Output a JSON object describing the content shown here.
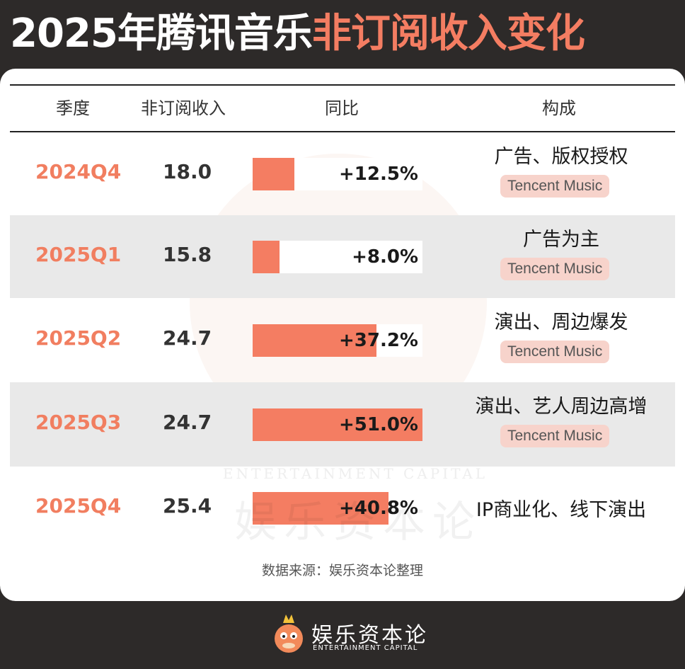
{
  "title": {
    "year": "2025",
    "main": "年腾讯音乐",
    "highlight": "非订阅收入变化"
  },
  "colors": {
    "accent": "#f47d62",
    "background": "#2d2a29",
    "badge": "#f7d3cb"
  },
  "table": {
    "headers": [
      "季度",
      "非订阅收入",
      "同比",
      "构成"
    ],
    "rows": [
      {
        "quarter": "2024Q4",
        "revenue": "18.0",
        "yoy_label": "+12.5%",
        "composition": "广告、版权授权",
        "badge": "Tencent Music"
      },
      {
        "quarter": "2025Q1",
        "revenue": "15.8",
        "yoy_label": "+8.0%",
        "composition": "广告为主",
        "badge": "Tencent Music"
      },
      {
        "quarter": "2025Q2",
        "revenue": "24.7",
        "yoy_label": "+37.2%",
        "composition": "演出、周边爆发",
        "badge": "Tencent Music"
      },
      {
        "quarter": "2025Q3",
        "revenue": "24.7",
        "yoy_label": "+51.0%",
        "composition": "演出、艺人周边高增",
        "badge": "Tencent Music"
      },
      {
        "quarter": "2025Q4",
        "revenue": "25.4",
        "yoy_label": "+40.8%",
        "composition": "IP商业化、线下演出",
        "badge": ""
      }
    ]
  },
  "chart_data": {
    "type": "bar",
    "orientation": "horizontal",
    "title": "2025年腾讯音乐非订阅收入变化",
    "categories": [
      "2024Q4",
      "2025Q1",
      "2025Q2",
      "2025Q3",
      "2025Q4"
    ],
    "series": [
      {
        "name": "同比",
        "unit": "%",
        "values": [
          12.5,
          8.0,
          37.2,
          51.0,
          40.8
        ]
      },
      {
        "name": "非订阅收入",
        "values": [
          18.0,
          15.8,
          24.7,
          24.7,
          25.4
        ]
      }
    ],
    "xlim": [
      0,
      51.0
    ]
  },
  "source": "数据来源：娱乐资本论整理",
  "watermark": {
    "en": "ENTERTAINMENT CAPITAL",
    "cn": "娱乐资本论"
  },
  "footer": {
    "logo_cn": "娱乐资本论",
    "logo_en": "ENTERTAINMENT CAPITAL"
  },
  "icons": {
    "logo": "mascot-logo-icon"
  }
}
